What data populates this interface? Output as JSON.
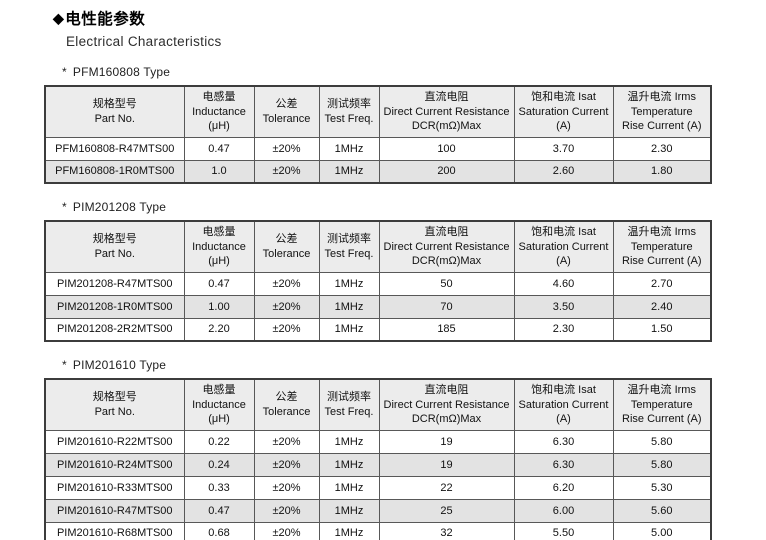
{
  "page": {
    "bullet": "◆",
    "title_zh": "电性能参数",
    "title_en": "Electrical Characteristics"
  },
  "colors": {
    "header_bg": "#ececec",
    "row_alt_bg": "#e3e3e3",
    "border": "#3c3c3c",
    "page_bg": "#ffffff"
  },
  "header": {
    "cols": [
      {
        "lines": [
          "规格型号",
          "Part No."
        ]
      },
      {
        "lines": [
          "电感量",
          "Inductance",
          "(μH)"
        ]
      },
      {
        "lines": [
          "公差",
          "Tolerance"
        ]
      },
      {
        "lines": [
          "测试频率",
          "Test Freq."
        ]
      },
      {
        "lines": [
          "直流电阻",
          "Direct Current Resistance",
          "DCR(mΩ)Max"
        ]
      },
      {
        "lines": [
          "饱和电流 Isat",
          "Saturation Current",
          "(A)"
        ]
      },
      {
        "lines": [
          "温升电流 Irms",
          "Temperature",
          "Rise Current (A)"
        ]
      }
    ]
  },
  "sections": [
    {
      "marker": "*",
      "name": "PFM160808 Type",
      "rows": [
        [
          "PFM160808-R47MTS00",
          "0.47",
          "±20%",
          "1MHz",
          "100",
          "3.70",
          "2.30"
        ],
        [
          "PFM160808-1R0MTS00",
          "1.0",
          "±20%",
          "1MHz",
          "200",
          "2.60",
          "1.80"
        ]
      ]
    },
    {
      "marker": "*",
      "name": "PIM201208 Type",
      "rows": [
        [
          "PIM201208-R47MTS00",
          "0.47",
          "±20%",
          "1MHz",
          "50",
          "4.60",
          "2.70"
        ],
        [
          "PIM201208-1R0MTS00",
          "1.00",
          "±20%",
          "1MHz",
          "70",
          "3.50",
          "2.40"
        ],
        [
          "PIM201208-2R2MTS00",
          "2.20",
          "±20%",
          "1MHz",
          "185",
          "2.30",
          "1.50"
        ]
      ]
    },
    {
      "marker": "*",
      "name": "PIM201610 Type",
      "rows": [
        [
          "PIM201610-R22MTS00",
          "0.22",
          "±20%",
          "1MHz",
          "19",
          "6.30",
          "5.80"
        ],
        [
          "PIM201610-R24MTS00",
          "0.24",
          "±20%",
          "1MHz",
          "19",
          "6.30",
          "5.80"
        ],
        [
          "PIM201610-R33MTS00",
          "0.33",
          "±20%",
          "1MHz",
          "22",
          "6.20",
          "5.30"
        ],
        [
          "PIM201610-R47MTS00",
          "0.47",
          "±20%",
          "1MHz",
          "25",
          "6.00",
          "5.60"
        ],
        [
          "PIM201610-R68MTS00",
          "0.68",
          "±20%",
          "1MHz",
          "32",
          "5.50",
          "5.00"
        ]
      ]
    }
  ]
}
